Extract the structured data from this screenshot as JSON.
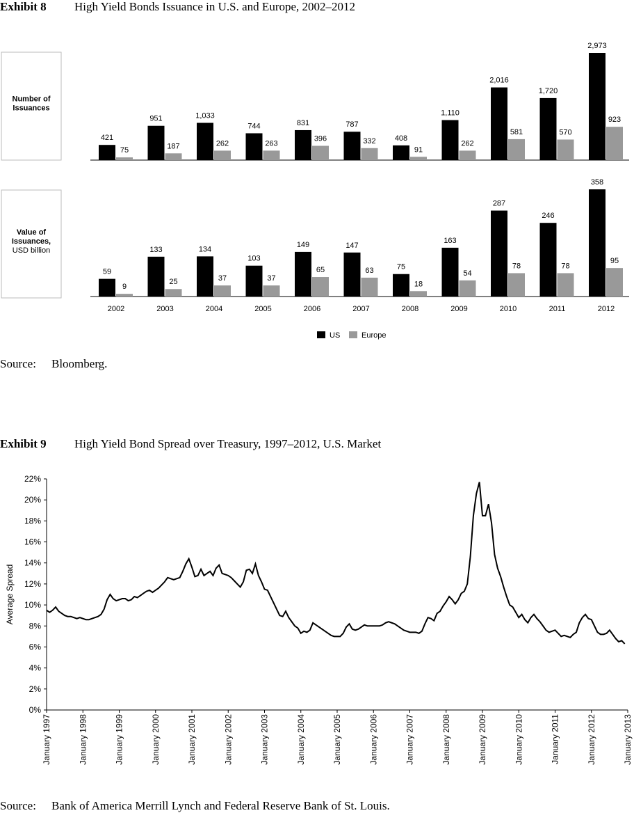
{
  "exhibit_8": {
    "label": "Exhibit 8",
    "title": "High Yield Bonds Issuance in U.S. and Europe, 2002–2012"
  },
  "source_8": {
    "label": "Source:",
    "text": "Bloomberg."
  },
  "exhibit_9": {
    "label": "Exhibit 9",
    "title": "High Yield Bond Spread over Treasury, 1997–2012, U.S. Market"
  },
  "source_9": {
    "label": "Source:",
    "text": "Bank of America Merrill Lynch and Federal Reserve Bank of St. Louis."
  },
  "chart_data": [
    {
      "type": "bar",
      "label_lines": [
        "Number of",
        "Issuances"
      ],
      "series": [
        {
          "color": "#000000",
          "values": [
            421,
            951,
            1033,
            744,
            831,
            787,
            408,
            1110,
            2016,
            1720,
            2973
          ],
          "value_labels": [
            "421",
            "951",
            "1,033",
            "744",
            "831",
            "787",
            "408",
            "1,110",
            "2,016",
            "1,720",
            "2,973"
          ]
        },
        {
          "color": "#999999",
          "values": [
            75,
            187,
            262,
            263,
            396,
            332,
            91,
            262,
            581,
            570,
            923
          ]
        }
      ]
    },
    {
      "type": "bar",
      "label_lines": [
        "Value of",
        "Issuances,"
      ],
      "sublabel": "USD billion",
      "categories": [
        "2002",
        "2003",
        "2004",
        "2005",
        "2006",
        "2007",
        "2008",
        "2009",
        "2010",
        "2011",
        "2012"
      ],
      "series": [
        {
          "name": "US",
          "color": "#000000",
          "values": [
            59,
            133,
            134,
            103,
            149,
            147,
            75,
            163,
            287,
            246,
            358
          ]
        },
        {
          "name": "Europe",
          "color": "#999999",
          "values": [
            9,
            25,
            37,
            37,
            65,
            63,
            18,
            54,
            78,
            78,
            95
          ]
        }
      ]
    },
    {
      "type": "line",
      "y_label": "Average Spread",
      "color": "#000000",
      "ylim": [
        0,
        22
      ],
      "yticks": [
        {
          "value": 0,
          "label": "0%"
        },
        {
          "value": 2,
          "label": "2%"
        },
        {
          "value": 4,
          "label": "4%"
        },
        {
          "value": 6,
          "label": "6%"
        },
        {
          "value": 8,
          "label": "8%"
        },
        {
          "value": 10,
          "label": "10%"
        },
        {
          "value": 12,
          "label": "12%"
        },
        {
          "value": 14,
          "label": "14%"
        },
        {
          "value": 16,
          "label": "16%"
        },
        {
          "value": 18,
          "label": "18%"
        },
        {
          "value": 20,
          "label": "20%"
        },
        {
          "value": 22,
          "label": "22%"
        }
      ],
      "xlim": [
        "1997-01",
        "2013-01"
      ],
      "xticks": [
        {
          "value": "1997-01",
          "label": "January 1997"
        },
        {
          "value": "1998-01",
          "label": "January 1998"
        },
        {
          "value": "1999-01",
          "label": "January 1999"
        },
        {
          "value": "2000-01",
          "label": "January 2000"
        },
        {
          "value": "2001-01",
          "label": "January 2001"
        },
        {
          "value": "2002-01",
          "label": "January 2002"
        },
        {
          "value": "2003-01",
          "label": "January 2003"
        },
        {
          "value": "2004-01",
          "label": "January 2004"
        },
        {
          "value": "2005-01",
          "label": "January 2005"
        },
        {
          "value": "2006-01",
          "label": "January 2006"
        },
        {
          "value": "2007-01",
          "label": "January 2007"
        },
        {
          "value": "2008-01",
          "label": "January 2008"
        },
        {
          "value": "2009-01",
          "label": "January 2009"
        },
        {
          "value": "2010-01",
          "label": "January 2010"
        },
        {
          "value": "2011-01",
          "label": "January 2011"
        },
        {
          "value": "2012-01",
          "label": "January 2012"
        },
        {
          "value": "2013-01",
          "label": "January 2013"
        }
      ],
      "x": [
        "1997-01",
        "1997-02",
        "1997-03",
        "1997-04",
        "1997-05",
        "1997-06",
        "1997-07",
        "1997-08",
        "1997-09",
        "1997-10",
        "1997-11",
        "1997-12",
        "1998-01",
        "1998-02",
        "1998-03",
        "1998-04",
        "1998-05",
        "1998-06",
        "1998-07",
        "1998-08",
        "1998-09",
        "1998-10",
        "1998-11",
        "1998-12",
        "1999-01",
        "1999-02",
        "1999-03",
        "1999-04",
        "1999-05",
        "1999-06",
        "1999-07",
        "1999-08",
        "1999-09",
        "1999-10",
        "1999-11",
        "1999-12",
        "2000-01",
        "2000-02",
        "2000-03",
        "2000-04",
        "2000-05",
        "2000-06",
        "2000-07",
        "2000-08",
        "2000-09",
        "2000-10",
        "2000-11",
        "2000-12",
        "2001-01",
        "2001-02",
        "2001-03",
        "2001-04",
        "2001-05",
        "2001-06",
        "2001-07",
        "2001-08",
        "2001-09",
        "2001-10",
        "2001-11",
        "2001-12",
        "2002-01",
        "2002-02",
        "2002-03",
        "2002-04",
        "2002-05",
        "2002-06",
        "2002-07",
        "2002-08",
        "2002-09",
        "2002-10",
        "2002-11",
        "2002-12",
        "2003-01",
        "2003-02",
        "2003-03",
        "2003-04",
        "2003-05",
        "2003-06",
        "2003-07",
        "2003-08",
        "2003-09",
        "2003-10",
        "2003-11",
        "2003-12",
        "2004-01",
        "2004-02",
        "2004-03",
        "2004-04",
        "2004-05",
        "2004-06",
        "2004-07",
        "2004-08",
        "2004-09",
        "2004-10",
        "2004-11",
        "2004-12",
        "2005-01",
        "2005-02",
        "2005-03",
        "2005-04",
        "2005-05",
        "2005-06",
        "2005-07",
        "2005-08",
        "2005-09",
        "2005-10",
        "2005-11",
        "2005-12",
        "2006-01",
        "2006-02",
        "2006-03",
        "2006-04",
        "2006-05",
        "2006-06",
        "2006-07",
        "2006-08",
        "2006-09",
        "2006-10",
        "2006-11",
        "2006-12",
        "2007-01",
        "2007-02",
        "2007-03",
        "2007-04",
        "2007-05",
        "2007-06",
        "2007-07",
        "2007-08",
        "2007-09",
        "2007-10",
        "2007-11",
        "2007-12",
        "2008-01",
        "2008-02",
        "2008-03",
        "2008-04",
        "2008-05",
        "2008-06",
        "2008-07",
        "2008-08",
        "2008-09",
        "2008-10",
        "2008-11",
        "2008-12",
        "2009-01",
        "2009-02",
        "2009-03",
        "2009-04",
        "2009-05",
        "2009-06",
        "2009-07",
        "2009-08",
        "2009-09",
        "2009-10",
        "2009-11",
        "2009-12",
        "2010-01",
        "2010-02",
        "2010-03",
        "2010-04",
        "2010-05",
        "2010-06",
        "2010-07",
        "2010-08",
        "2010-09",
        "2010-10",
        "2010-11",
        "2010-12",
        "2011-01",
        "2011-02",
        "2011-03",
        "2011-04",
        "2011-05",
        "2011-06",
        "2011-07",
        "2011-08",
        "2011-09",
        "2011-10",
        "2011-11",
        "2011-12",
        "2012-01",
        "2012-02",
        "2012-03",
        "2012-04",
        "2012-05",
        "2012-06",
        "2012-07",
        "2012-08",
        "2012-09",
        "2012-10",
        "2012-11",
        "2012-12"
      ],
      "values": [
        9.5,
        9.3,
        9.5,
        9.8,
        9.4,
        9.2,
        9.0,
        8.9,
        8.9,
        8.8,
        8.7,
        8.8,
        8.7,
        8.6,
        8.6,
        8.7,
        8.8,
        8.9,
        9.1,
        9.6,
        10.5,
        11.0,
        10.6,
        10.4,
        10.5,
        10.6,
        10.6,
        10.4,
        10.5,
        10.8,
        10.7,
        10.9,
        11.1,
        11.3,
        11.4,
        11.2,
        11.4,
        11.6,
        11.9,
        12.2,
        12.6,
        12.5,
        12.4,
        12.5,
        12.6,
        13.2,
        13.9,
        14.4,
        13.6,
        12.7,
        12.8,
        13.4,
        12.8,
        13.0,
        13.2,
        12.8,
        13.5,
        13.8,
        13.0,
        12.9,
        12.8,
        12.6,
        12.3,
        12.0,
        11.7,
        12.2,
        13.3,
        13.4,
        13.0,
        13.9,
        12.8,
        12.2,
        11.5,
        11.4,
        10.8,
        10.2,
        9.6,
        9.0,
        8.9,
        9.4,
        8.8,
        8.4,
        8.0,
        7.8,
        7.3,
        7.5,
        7.4,
        7.6,
        8.3,
        8.1,
        7.9,
        7.7,
        7.5,
        7.3,
        7.1,
        7.0,
        7.0,
        7.0,
        7.3,
        7.9,
        8.2,
        7.7,
        7.6,
        7.7,
        7.9,
        8.1,
        8.0,
        8.0,
        8.0,
        8.0,
        8.0,
        8.1,
        8.3,
        8.4,
        8.3,
        8.2,
        8.0,
        7.8,
        7.6,
        7.5,
        7.4,
        7.4,
        7.4,
        7.3,
        7.5,
        8.2,
        8.8,
        8.7,
        8.5,
        9.2,
        9.4,
        9.9,
        10.3,
        10.8,
        10.5,
        10.1,
        10.5,
        11.1,
        11.3,
        12.0,
        14.6,
        18.5,
        20.6,
        21.7,
        18.5,
        18.5,
        19.6,
        17.8,
        14.8,
        13.5,
        12.7,
        11.7,
        10.8,
        10.0,
        9.8,
        9.3,
        8.8,
        9.1,
        8.6,
        8.3,
        8.8,
        9.1,
        8.7,
        8.4,
        8.0,
        7.6,
        7.4,
        7.5,
        7.6,
        7.3,
        7.0,
        7.1,
        7.0,
        6.9,
        7.2,
        7.4,
        8.3,
        8.8,
        9.1,
        8.7,
        8.6,
        8.0,
        7.4,
        7.2,
        7.2,
        7.3,
        7.6,
        7.2,
        6.8,
        6.5,
        6.6,
        6.3
      ]
    }
  ]
}
